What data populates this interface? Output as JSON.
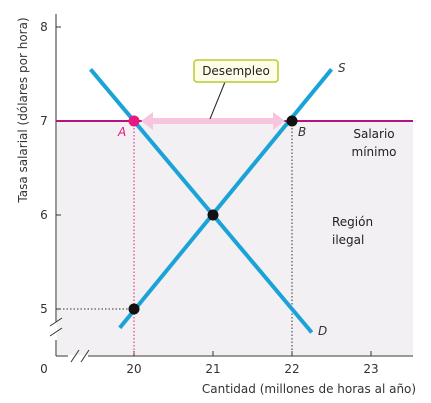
{
  "chart_data": {
    "type": "line",
    "xlabel": "Cantidad (millones de horas al año)",
    "ylabel": "Tasa salarial (dólares por hora)",
    "x_origin_label": "0",
    "xlim": [
      19.1,
      23.5
    ],
    "ylim": [
      4.6,
      8.05
    ],
    "x_ticks": [
      {
        "value": 20,
        "label": "20",
        "highlight": true
      },
      {
        "value": 21,
        "label": "21",
        "highlight": false
      },
      {
        "value": 22,
        "label": "22",
        "highlight": false
      },
      {
        "value": 23,
        "label": "23",
        "highlight": false
      }
    ],
    "y_ticks": [
      {
        "value": 5,
        "label": "5",
        "highlight": false
      },
      {
        "value": 6,
        "label": "6",
        "highlight": false
      },
      {
        "value": 7,
        "label": "7",
        "highlight": true
      },
      {
        "value": 8,
        "label": "8",
        "highlight": false
      }
    ],
    "series": [
      {
        "name": "S",
        "color": "#1ba3d8",
        "points": [
          [
            19.82,
            4.8
          ],
          [
            22.5,
            7.55
          ]
        ]
      },
      {
        "name": "D",
        "color": "#1ba3d8",
        "points": [
          [
            19.45,
            7.55
          ],
          [
            22.25,
            4.75
          ]
        ]
      }
    ],
    "minimum_wage": {
      "value": 7,
      "color": "#b5137f"
    },
    "illegal_region": {
      "fill": "#f2f0f2"
    },
    "points": [
      {
        "label": "A",
        "x": 20,
        "y": 7,
        "color": "#e6177f"
      },
      {
        "label": "B",
        "x": 22,
        "y": 7,
        "color": "#111111"
      },
      {
        "label": "",
        "x": 21,
        "y": 6,
        "color": "#111111"
      },
      {
        "label": "",
        "x": 20,
        "y": 5,
        "color": "#111111"
      }
    ],
    "annotations": {
      "unemployment": "Desempleo",
      "min_wage_line1": "Salario",
      "min_wage_line2": "mínimo",
      "illegal_line1": "Región",
      "illegal_line2": "ilegal"
    },
    "colors": {
      "curve": "#1ba3d8",
      "minimum_wage": "#b5137f",
      "arrow": "#f7c6dd",
      "callout_border": "#b5cc2e",
      "callout_fill": "#fffde8",
      "guide_pink": "#e6177f",
      "guide_black": "#333333"
    }
  }
}
